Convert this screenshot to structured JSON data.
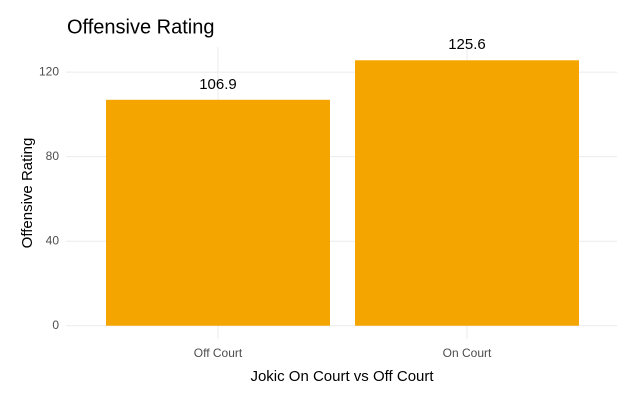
{
  "chart_data": {
    "type": "bar",
    "title": "Offensive Rating",
    "x_label": "Jokic On Court vs Off Court",
    "y_label": "Offensive Rating",
    "categories": [
      "Off Court",
      "On Court"
    ],
    "values": [
      106.9,
      125.6
    ],
    "color": "#f5a500",
    "ylim": [
      -6.28,
      131.88
    ],
    "yticks": [
      0,
      40,
      80,
      120
    ],
    "grid": true
  }
}
